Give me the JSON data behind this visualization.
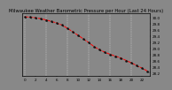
{
  "title": "Milwaukee Weather Barometric Pressure per Hour (Last 24 Hours)",
  "hours": [
    0,
    1,
    2,
    3,
    4,
    5,
    6,
    7,
    8,
    9,
    10,
    11,
    12,
    13,
    14,
    15,
    16,
    17,
    18,
    19,
    20,
    21,
    22,
    23
  ],
  "pressure": [
    30.02,
    30.01,
    29.99,
    29.96,
    29.92,
    29.87,
    29.82,
    29.75,
    29.65,
    29.53,
    29.42,
    29.3,
    29.18,
    29.05,
    28.95,
    28.87,
    28.8,
    28.74,
    28.68,
    28.6,
    28.52,
    28.43,
    28.35,
    28.25
  ],
  "line_color": "#ff0000",
  "marker_color": "#111111",
  "bg_color": "#888888",
  "plot_bg": "#888888",
  "grid_color": "#aaaaaa",
  "ylim_min": 28.1,
  "ylim_max": 30.15,
  "title_fontsize": 3.8,
  "tick_fontsize": 3.0,
  "right_axis_values": [
    30.0,
    29.8,
    29.6,
    29.4,
    29.2,
    29.0,
    28.8,
    28.6,
    28.4,
    28.2
  ],
  "xtick_step": 2
}
